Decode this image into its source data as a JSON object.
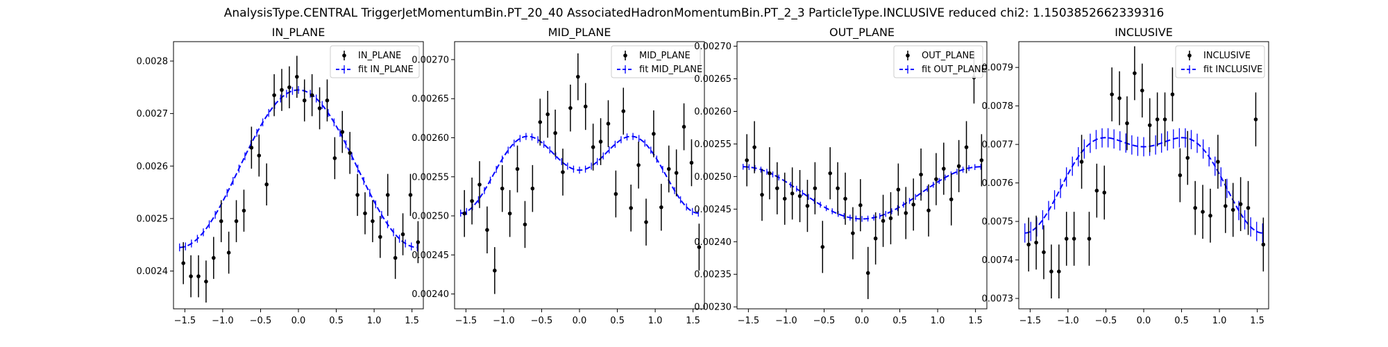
{
  "figure": {
    "suptitle": "AnalysisType.CENTRAL TriggerJetMomentumBin.PT_20_40 AssociatedHadronMomentumBin.PT_2_3 ParticleType.INCLUSIVE reduced chi2: 1.1503852662339316"
  },
  "colors": {
    "data": "#000000",
    "fit": "#0000ff"
  },
  "chart_data": [
    {
      "type": "scatter",
      "title": "IN_PLANE",
      "xlim": [
        -1.65,
        1.65
      ],
      "ylim": [
        0.002328,
        0.002837
      ],
      "xticks": [
        -1.5,
        -1.0,
        -0.5,
        0.0,
        0.5,
        1.0,
        1.5
      ],
      "xtick_labels": [
        "−1.5",
        "−1.0",
        "−0.5",
        "0.0",
        "0.5",
        "1.0",
        "1.5"
      ],
      "yticks": [
        0.0024,
        0.0025,
        0.0026,
        0.0027,
        0.0028
      ],
      "ytick_labels": [
        "0.0024",
        "0.0025",
        "0.0026",
        "0.0027",
        "0.0028"
      ],
      "legend": {
        "placement": "top-right",
        "entries": [
          "IN_PLANE",
          "fit IN_PLANE"
        ]
      },
      "series": [
        {
          "name": "IN_PLANE",
          "kind": "errorbar",
          "x": [
            -1.52,
            -1.42,
            -1.32,
            -1.22,
            -1.12,
            -1.02,
            -0.92,
            -0.82,
            -0.72,
            -0.62,
            -0.52,
            -0.42,
            -0.32,
            -0.22,
            -0.12,
            -0.02,
            0.08,
            0.18,
            0.28,
            0.38,
            0.48,
            0.58,
            0.68,
            0.78,
            0.88,
            0.98,
            1.08,
            1.18,
            1.28,
            1.38,
            1.48,
            1.58
          ],
          "y": [
            0.002415,
            0.00239,
            0.00239,
            0.00238,
            0.002425,
            0.002495,
            0.002435,
            0.002495,
            0.002515,
            0.002635,
            0.00262,
            0.002565,
            0.002735,
            0.002745,
            0.00275,
            0.00277,
            0.002725,
            0.002735,
            0.00271,
            0.002725,
            0.002615,
            0.002665,
            0.002625,
            0.002545,
            0.00251,
            0.002495,
            0.002465,
            0.002545,
            0.002425,
            0.00247,
            0.002545,
            0.002455
          ],
          "err": [
            4e-05,
            4e-05,
            4e-05,
            4e-05,
            4e-05,
            4e-05,
            4e-05,
            4e-05,
            4e-05,
            4e-05,
            4e-05,
            4e-05,
            4e-05,
            4e-05,
            4e-05,
            4e-05,
            4e-05,
            4e-05,
            4e-05,
            4e-05,
            4e-05,
            4e-05,
            4e-05,
            4e-05,
            4e-05,
            4e-05,
            4e-05,
            4e-05,
            4e-05,
            4e-05,
            4e-05,
            4e-05
          ]
        },
        {
          "name": "fit IN_PLANE",
          "kind": "fit",
          "model": "harmonic",
          "c": [
            0.002595,
            0.00015,
            0.0,
            0.0
          ],
          "err_frac": 7.5e-06
        }
      ]
    },
    {
      "type": "scatter",
      "title": "MID_PLANE",
      "xlim": [
        -1.65,
        1.65
      ],
      "ylim": [
        0.002381,
        0.002723
      ],
      "xticks": [
        -1.5,
        -1.0,
        -0.5,
        0.0,
        0.5,
        1.0,
        1.5
      ],
      "xtick_labels": [
        "−1.5",
        "−1.0",
        "−0.5",
        "0.0",
        "0.5",
        "1.0",
        "1.5"
      ],
      "yticks": [
        0.0024,
        0.00245,
        0.0025,
        0.00255,
        0.0026,
        0.00265,
        0.0027
      ],
      "ytick_labels": [
        "0.00240",
        "0.00245",
        "0.00250",
        "0.00255",
        "0.00260",
        "0.00265",
        "0.00270"
      ],
      "legend": {
        "placement": "top-right",
        "entries": [
          "MID_PLANE",
          "fit MID_PLANE"
        ]
      },
      "series": [
        {
          "name": "MID_PLANE",
          "kind": "errorbar",
          "x": [
            -1.52,
            -1.42,
            -1.32,
            -1.22,
            -1.12,
            -1.02,
            -0.92,
            -0.82,
            -0.72,
            -0.62,
            -0.52,
            -0.42,
            -0.32,
            -0.22,
            -0.12,
            -0.02,
            0.08,
            0.18,
            0.28,
            0.38,
            0.48,
            0.58,
            0.68,
            0.78,
            0.88,
            0.98,
            1.08,
            1.18,
            1.28,
            1.38,
            1.48,
            1.58
          ],
          "y": [
            0.002503,
            0.002519,
            0.00254,
            0.002482,
            0.00243,
            0.002535,
            0.002503,
            0.00256,
            0.002489,
            0.002535,
            0.00262,
            0.00263,
            0.002606,
            0.002556,
            0.002638,
            0.002678,
            0.00264,
            0.002588,
            0.002595,
            0.002618,
            0.002528,
            0.002634,
            0.00251,
            0.002565,
            0.002492,
            0.002605,
            0.002511,
            0.00256,
            0.002555,
            0.002614,
            0.002568,
            0.00246
          ],
          "err": [
            3e-05,
            3e-05,
            3e-05,
            3e-05,
            3e-05,
            3e-05,
            3e-05,
            3e-05,
            3e-05,
            3e-05,
            3e-05,
            3e-05,
            3e-05,
            3e-05,
            3e-05,
            3e-05,
            3e-05,
            3e-05,
            3e-05,
            3e-05,
            3e-05,
            3e-05,
            3e-05,
            3e-05,
            3e-05,
            3e-05,
            3e-05,
            3e-05,
            3e-05,
            3e-05,
            3e-05,
            3e-05
          ]
        },
        {
          "name": "fit MID_PLANE",
          "kind": "fit",
          "model": "harmonic",
          "c": [
            0.002565,
            2.75e-05,
            -3.4e-05,
            0.0
          ],
          "err_frac": 4.5e-06
        }
      ]
    },
    {
      "type": "scatter",
      "title": "OUT_PLANE",
      "xlim": [
        -1.65,
        1.65
      ],
      "ylim": [
        0.002297,
        0.002707
      ],
      "xticks": [
        -1.5,
        -1.0,
        -0.5,
        0.0,
        0.5,
        1.0,
        1.5
      ],
      "xtick_labels": [
        "−1.5",
        "−1.0",
        "−0.5",
        "0.0",
        "0.5",
        "1.0",
        "1.5"
      ],
      "yticks": [
        0.0023,
        0.00235,
        0.0024,
        0.00245,
        0.0025,
        0.00255,
        0.0026,
        0.00265,
        0.0027
      ],
      "ytick_labels": [
        "0.00230",
        "0.00235",
        "0.00240",
        "0.00245",
        "0.00250",
        "0.00255",
        "0.00260",
        "0.00265",
        "0.00270"
      ],
      "legend": {
        "placement": "top-right",
        "entries": [
          "OUT_PLANE",
          "fit OUT_PLANE"
        ]
      },
      "series": [
        {
          "name": "OUT_PLANE",
          "kind": "errorbar",
          "x": [
            -1.52,
            -1.42,
            -1.32,
            -1.22,
            -1.12,
            -1.02,
            -0.92,
            -0.82,
            -0.72,
            -0.62,
            -0.52,
            -0.42,
            -0.32,
            -0.22,
            -0.12,
            -0.02,
            0.08,
            0.18,
            0.28,
            0.38,
            0.48,
            0.58,
            0.68,
            0.78,
            0.88,
            0.98,
            1.08,
            1.18,
            1.28,
            1.38,
            1.48,
            1.58
          ],
          "y": [
            0.002525,
            0.002545,
            0.002472,
            0.002505,
            0.002482,
            0.002466,
            0.002474,
            0.00247,
            0.002455,
            0.002482,
            0.002392,
            0.002505,
            0.002482,
            0.002466,
            0.002413,
            0.002456,
            0.002352,
            0.002405,
            0.002432,
            0.002436,
            0.00248,
            0.002444,
            0.002457,
            0.002503,
            0.002448,
            0.002496,
            0.002512,
            0.002465,
            0.002516,
            0.002545,
            0.002652,
            0.002525
          ],
          "err": [
            4e-05,
            4e-05,
            4e-05,
            4e-05,
            4e-05,
            4e-05,
            4e-05,
            4e-05,
            4e-05,
            4e-05,
            4e-05,
            4e-05,
            4e-05,
            4e-05,
            4e-05,
            4e-05,
            4e-05,
            4e-05,
            4e-05,
            4e-05,
            4e-05,
            4e-05,
            4e-05,
            4e-05,
            4e-05,
            4e-05,
            4e-05,
            4e-05,
            4e-05,
            4e-05,
            4e-05,
            4e-05
          ]
        },
        {
          "name": "fit OUT_PLANE",
          "kind": "fit",
          "model": "harmonic",
          "c": [
            0.002475,
            -4e-05,
            0.0,
            0.0
          ],
          "err_frac": 4.5e-06
        }
      ]
    },
    {
      "type": "scatter",
      "title": "INCLUSIVE",
      "xlim": [
        -1.65,
        1.65
      ],
      "ylim": [
        0.007273,
        0.007967
      ],
      "xticks": [
        -1.5,
        -1.0,
        -0.5,
        0.0,
        0.5,
        1.0,
        1.5
      ],
      "xtick_labels": [
        "−1.5",
        "−1.0",
        "−0.5",
        "0.0",
        "0.5",
        "1.0",
        "1.5"
      ],
      "yticks": [
        0.0073,
        0.0074,
        0.0075,
        0.0076,
        0.0077,
        0.0078,
        0.0079
      ],
      "ytick_labels": [
        "0.0073",
        "0.0074",
        "0.0075",
        "0.0076",
        "0.0077",
        "0.0078",
        "0.0079"
      ],
      "legend": {
        "placement": "top-right",
        "entries": [
          "INCLUSIVE",
          "fit INCLUSIVE"
        ]
      },
      "series": [
        {
          "name": "INCLUSIVE",
          "kind": "errorbar",
          "x": [
            -1.52,
            -1.42,
            -1.32,
            -1.22,
            -1.12,
            -1.02,
            -0.92,
            -0.82,
            -0.72,
            -0.62,
            -0.52,
            -0.42,
            -0.32,
            -0.22,
            -0.12,
            -0.02,
            0.08,
            0.18,
            0.28,
            0.38,
            0.48,
            0.58,
            0.68,
            0.78,
            0.88,
            0.98,
            1.08,
            1.18,
            1.28,
            1.38,
            1.48,
            1.58
          ],
          "y": [
            0.00744,
            0.007445,
            0.00742,
            0.00737,
            0.00737,
            0.007455,
            0.007455,
            0.007655,
            0.007455,
            0.00758,
            0.007575,
            0.00783,
            0.00782,
            0.007755,
            0.007885,
            0.00784,
            0.00775,
            0.007765,
            0.007765,
            0.00783,
            0.00762,
            0.007665,
            0.007535,
            0.007525,
            0.007515,
            0.007655,
            0.00754,
            0.00753,
            0.007545,
            0.007535,
            0.007765,
            0.00744
          ],
          "err": [
            7e-05,
            7e-05,
            7e-05,
            7e-05,
            7e-05,
            7e-05,
            7e-05,
            7e-05,
            7e-05,
            7e-05,
            7e-05,
            7e-05,
            7e-05,
            7e-05,
            7e-05,
            7e-05,
            7e-05,
            7e-05,
            7e-05,
            7e-05,
            7e-05,
            7e-05,
            7e-05,
            7e-05,
            7e-05,
            7e-05,
            7e-05,
            7e-05,
            7e-05,
            7e-05,
            7e-05,
            7e-05
          ]
        },
        {
          "name": "fit INCLUSIVE",
          "kind": "fit",
          "model": "harmonic",
          "c": [
            0.007635,
            0.000112,
            -5.3e-05,
            0.0
          ],
          "err_frac": 2.5e-05
        }
      ]
    }
  ]
}
